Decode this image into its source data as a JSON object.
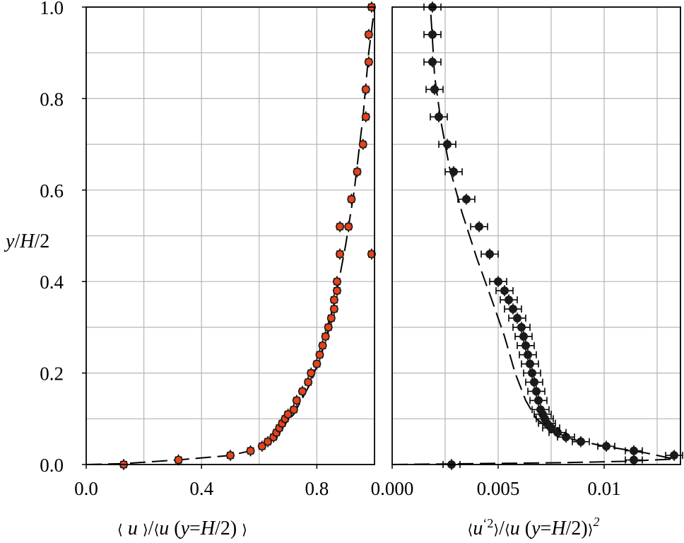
{
  "chart_data": [
    {
      "type": "scatter",
      "ylabel": "y/H/2",
      "xlabel": "⟨u⟩/⟨u(y=H/2)⟩",
      "xlim": [
        0.0,
        1.0
      ],
      "ylim": [
        0.0,
        1.0
      ],
      "xticks": [
        "0.0",
        "0.4",
        "0.8"
      ],
      "xtick_values": [
        0.0,
        0.4,
        0.8
      ],
      "yticks": [
        "0.0",
        "0.2",
        "0.4",
        "0.6",
        "0.8",
        "1.0"
      ],
      "ytick_values": [
        0.0,
        0.2,
        0.4,
        0.6,
        0.8,
        1.0
      ],
      "grid": true,
      "marker_color": "#e8421a",
      "series": [
        {
          "marker": "circle-filled",
          "x": [
            0.13,
            0.32,
            0.5,
            0.57,
            0.61,
            0.63,
            0.65,
            0.66,
            0.67,
            0.68,
            0.69,
            0.7,
            0.72,
            0.73,
            0.75,
            0.77,
            0.78,
            0.8,
            0.81,
            0.82,
            0.83,
            0.84,
            0.85,
            0.86,
            0.86,
            0.87,
            0.87,
            0.88,
            0.88,
            0.91,
            0.92,
            0.94,
            0.96,
            0.97,
            0.97,
            0.98,
            0.98,
            0.99,
            0.99
          ],
          "y": [
            0.0,
            0.01,
            0.02,
            0.03,
            0.04,
            0.05,
            0.06,
            0.07,
            0.08,
            0.09,
            0.1,
            0.11,
            0.12,
            0.14,
            0.16,
            0.18,
            0.2,
            0.22,
            0.24,
            0.26,
            0.28,
            0.3,
            0.32,
            0.34,
            0.36,
            0.38,
            0.4,
            0.46,
            0.52,
            0.52,
            0.58,
            0.64,
            0.7,
            0.76,
            0.82,
            0.88,
            0.94,
            1.0,
            0.46
          ],
          "x_error": 0.01,
          "y_error": 0.012
        },
        {
          "line": "dashed",
          "x": [
            0.0,
            0.13,
            0.32,
            0.5,
            0.57,
            0.65,
            0.72,
            0.78,
            0.83,
            0.87,
            0.9,
            0.93,
            0.96,
            0.98,
            1.0
          ],
          "y": [
            0.0,
            0.002,
            0.01,
            0.02,
            0.03,
            0.06,
            0.11,
            0.18,
            0.27,
            0.38,
            0.48,
            0.6,
            0.76,
            0.9,
            1.0
          ]
        }
      ]
    },
    {
      "type": "scatter",
      "xlabel": "⟨u'²⟩/⟨u(y=H/2)⟩²",
      "xlim": [
        0.0,
        0.0136
      ],
      "ylim": [
        0.0,
        1.0
      ],
      "xticks": [
        "0.000",
        "0.005",
        "0.01"
      ],
      "xtick_values": [
        0.0,
        0.005,
        0.01
      ],
      "grid": true,
      "marker_color": "#1a1a1a",
      "series": [
        {
          "marker": "circle-filled",
          "x": [
            0.0028,
            0.0133,
            0.0114,
            0.0114,
            0.0101,
            0.0089,
            0.0082,
            0.0078,
            0.0075,
            0.0073,
            0.0072,
            0.0071,
            0.007,
            0.0069,
            0.0068,
            0.0067,
            0.0066,
            0.0065,
            0.0064,
            0.0063,
            0.0062,
            0.0061,
            0.0059,
            0.0057,
            0.0055,
            0.0053,
            0.005,
            0.0046,
            0.0041,
            0.0035,
            0.0029,
            0.0026,
            0.0022,
            0.002,
            0.0019,
            0.0019,
            0.0019
          ],
          "y": [
            0.0,
            0.02,
            0.01,
            0.03,
            0.04,
            0.05,
            0.06,
            0.07,
            0.08,
            0.09,
            0.1,
            0.11,
            0.12,
            0.14,
            0.16,
            0.18,
            0.2,
            0.22,
            0.24,
            0.26,
            0.28,
            0.3,
            0.32,
            0.34,
            0.36,
            0.38,
            0.4,
            0.46,
            0.52,
            0.58,
            0.64,
            0.7,
            0.76,
            0.82,
            0.88,
            0.94,
            1.0
          ],
          "x_error": 0.0004,
          "y_error": 0.012
        },
        {
          "line": "dashed",
          "x": [
            0.0,
            0.004,
            0.008,
            0.011,
            0.0133,
            0.012,
            0.01,
            0.0085,
            0.0075,
            0.0068,
            0.0063,
            0.0058,
            0.0053,
            0.0047,
            0.004,
            0.0033,
            0.0027,
            0.0023,
            0.002,
            0.0019,
            0.0018
          ],
          "y": [
            0.0,
            0.002,
            0.004,
            0.007,
            0.012,
            0.025,
            0.04,
            0.055,
            0.075,
            0.1,
            0.14,
            0.2,
            0.28,
            0.36,
            0.45,
            0.55,
            0.65,
            0.75,
            0.85,
            0.93,
            1.0
          ]
        }
      ]
    }
  ]
}
